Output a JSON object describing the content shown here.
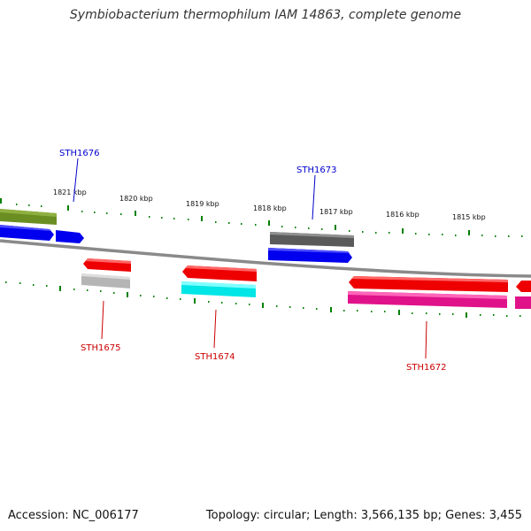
{
  "title": "Symbiobacterium thermophilum IAM 14863, complete genome",
  "footer": {
    "accession": "Accession: NC_006177",
    "summary": "Topology: circular; Length: 3,566,135 bp; Genes: 3,455"
  },
  "kbp_labels": [
    "1821 kbp",
    "1820 kbp",
    "1819 kbp",
    "1818 kbp",
    "1817 kbp",
    "1816 kbp",
    "1815 kbp"
  ],
  "gene_labels": [
    {
      "id": "STH1676",
      "color": "#0000cc"
    },
    {
      "id": "STH1673",
      "color": "#0000cc"
    },
    {
      "id": "STH1675",
      "color": "#cc0000"
    },
    {
      "id": "STH1674",
      "color": "#cc0000"
    },
    {
      "id": "STH1672",
      "color": "#cc0000"
    }
  ],
  "colors": {
    "olive": "#6b8e23",
    "blue": "#0000ff",
    "gray": "#666666",
    "red": "#ff0000",
    "silver": "#bbbbbb",
    "cyan": "#00ffff",
    "magenta": "#ff1493",
    "tick_green": "#008000",
    "backbone": "#888888"
  }
}
